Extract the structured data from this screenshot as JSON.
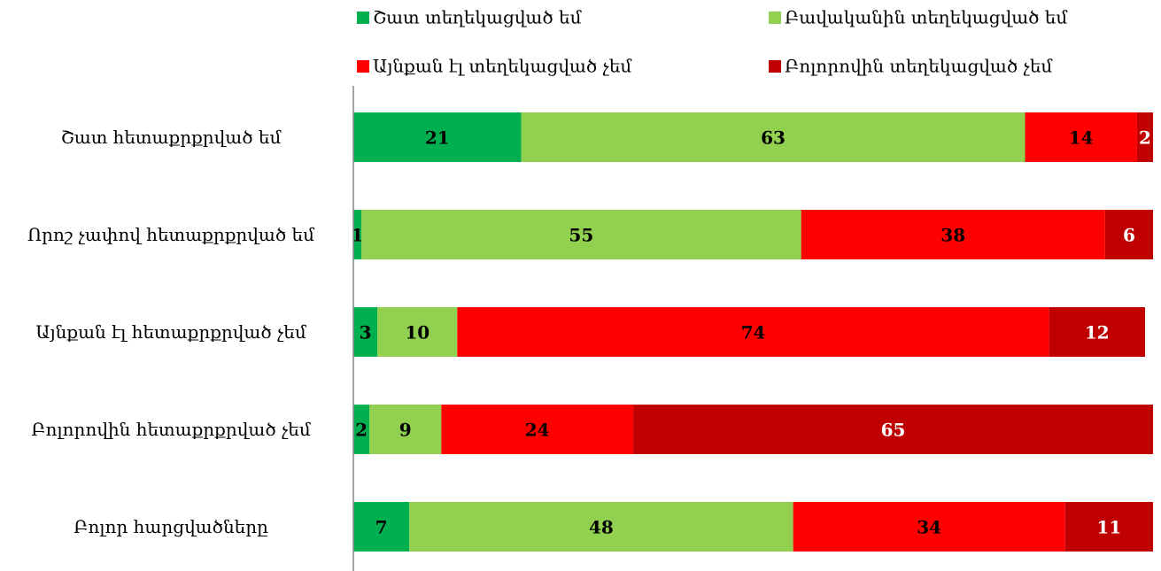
{
  "chart_data": {
    "type": "stacked-bar-horizontal",
    "categories": [
      "Շատ հետաքրքրված եմ",
      "Որոշ չափով հետաքրքրված եմ",
      "Այնքան էլ հետաքրքրված չեմ",
      "Բոլորովին հետաքրքրված չեմ",
      "Բոլոր հարցվածները"
    ],
    "series": [
      {
        "name": "Շատ տեղեկացված եմ",
        "color": "#00b050",
        "label_color": "#000000",
        "values": [
          21,
          1,
          3,
          2,
          7
        ]
      },
      {
        "name": "Բավականին տեղեկացված եմ",
        "color": "#92d050",
        "label_color": "#000000",
        "values": [
          63,
          55,
          10,
          9,
          48
        ]
      },
      {
        "name": "Այնքան էլ տեղեկացված չեմ",
        "color": "#ff0000",
        "label_color": "#000000",
        "values": [
          14,
          38,
          74,
          24,
          34
        ]
      },
      {
        "name": "Բոլորովին տեղեկացված չեմ",
        "color": "#c00000",
        "label_color": "#ffffff",
        "values": [
          2,
          6,
          12,
          65,
          11
        ]
      }
    ],
    "xlim": [
      0,
      100
    ],
    "legend": "top"
  }
}
